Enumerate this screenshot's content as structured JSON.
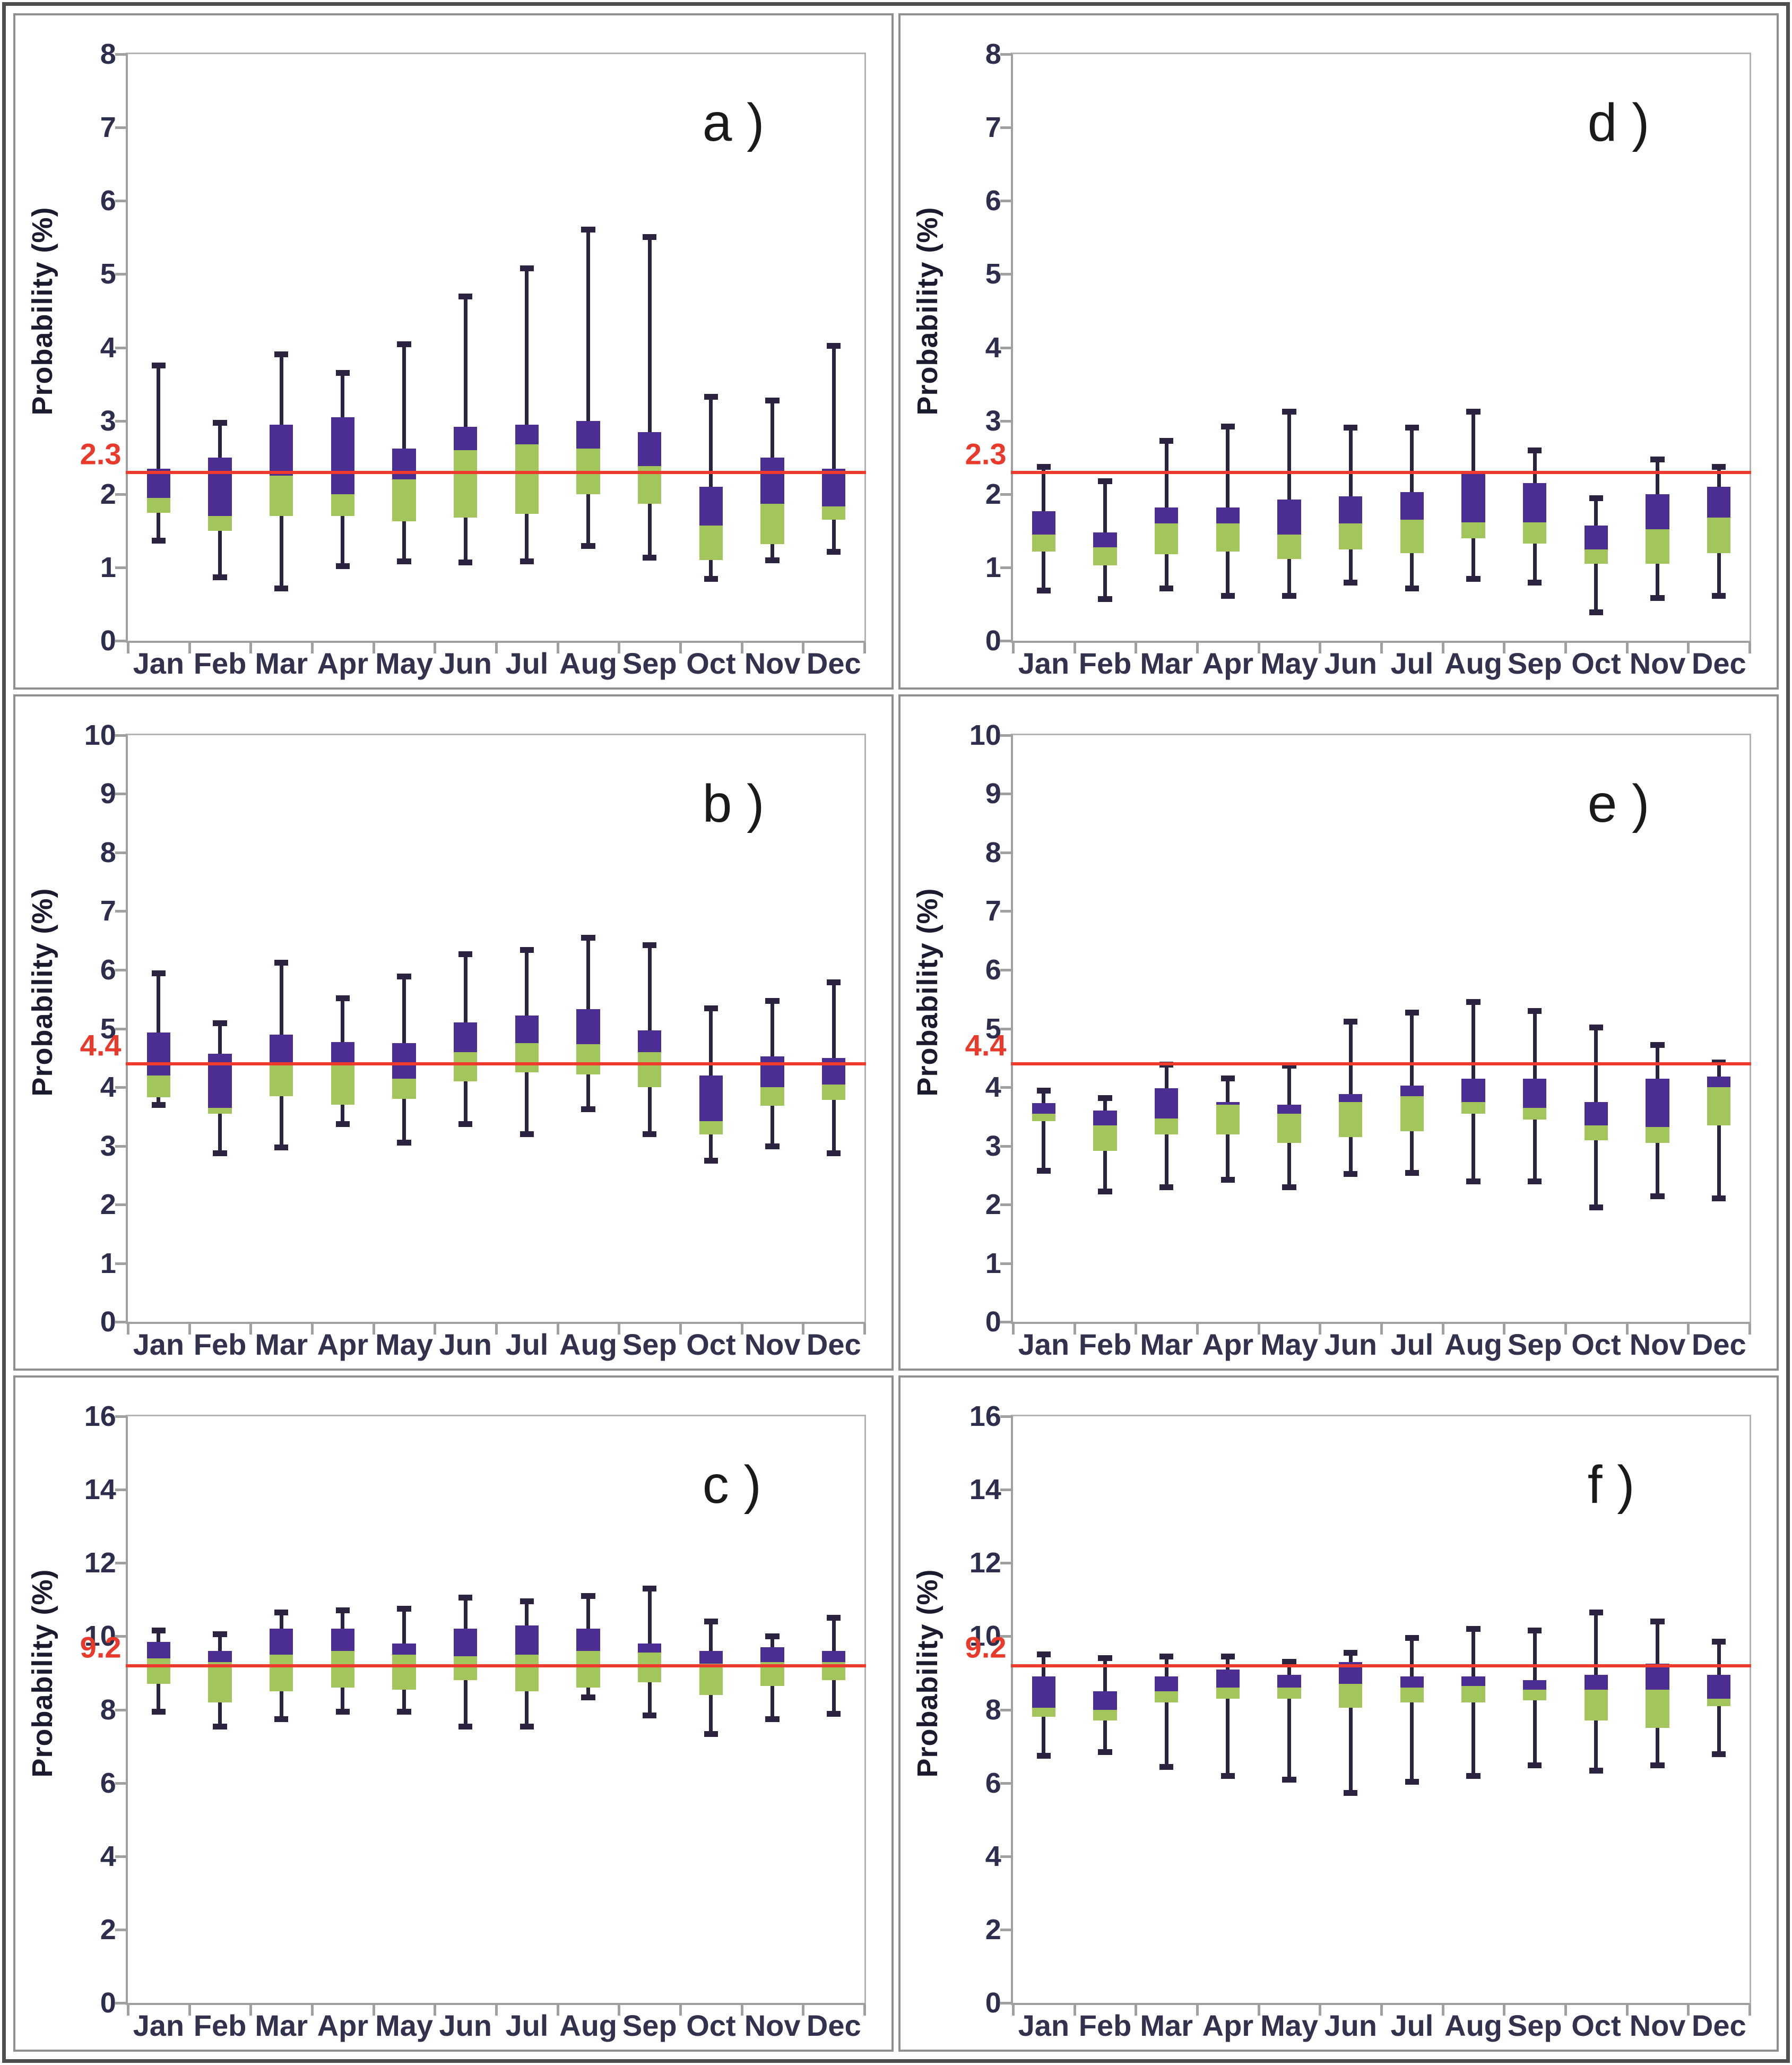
{
  "figure": {
    "description": "Six-panel monthly box-and-whisker plots of probability (%)",
    "months": [
      "Jan",
      "Feb",
      "Mar",
      "Apr",
      "May",
      "Jun",
      "Jul",
      "Aug",
      "Sep",
      "Oct",
      "Nov",
      "Dec"
    ],
    "ylabel": "Probability (%)",
    "box_columns": [
      "low",
      "q1",
      "median",
      "q3",
      "high"
    ],
    "colors": {
      "box_upper_purple": "#4c2d91",
      "box_lower_green": "#a3c65c",
      "whisker": "#2b2340",
      "ref_line_red": "#ef3b2d",
      "ref_label_red": "#e8392b",
      "axis_gray": "#a0a0a0",
      "plot_border_gray": "#b3b3b3",
      "panel_border_gray": "#8f8f8f",
      "outer_border_gray": "#4f4f4f",
      "tick_text_navy": "#2d2d4d"
    }
  },
  "chart_data": [
    {
      "panel": "a",
      "label": "a )",
      "type": "box",
      "ylabel": "Probability (%)",
      "ylim": [
        0,
        8
      ],
      "ystep": 1,
      "grid": false,
      "refline": {
        "value": 2.3,
        "label": "2.3"
      },
      "months": [
        "Jan",
        "Feb",
        "Mar",
        "Apr",
        "May",
        "Jun",
        "Jul",
        "Aug",
        "Sep",
        "Oct",
        "Nov",
        "Dec"
      ],
      "values": [
        [
          1.35,
          1.75,
          1.95,
          2.35,
          3.78
        ],
        [
          0.85,
          1.5,
          1.7,
          2.5,
          3.0
        ],
        [
          0.7,
          1.7,
          2.25,
          2.95,
          3.93
        ],
        [
          1.0,
          1.7,
          2.0,
          3.05,
          3.68
        ],
        [
          1.07,
          1.63,
          2.2,
          2.62,
          4.07
        ],
        [
          1.05,
          1.68,
          2.6,
          2.92,
          4.72
        ],
        [
          1.07,
          1.73,
          2.68,
          2.95,
          5.1
        ],
        [
          1.28,
          2.0,
          2.62,
          3.0,
          5.63
        ],
        [
          1.12,
          1.87,
          2.38,
          2.85,
          5.53
        ],
        [
          0.83,
          1.1,
          1.57,
          2.1,
          3.35
        ],
        [
          1.08,
          1.32,
          1.87,
          2.5,
          3.3
        ],
        [
          1.2,
          1.65,
          1.83,
          2.35,
          4.05
        ]
      ]
    },
    {
      "panel": "d",
      "label": "d )",
      "type": "box",
      "ylabel": "Probability (%)",
      "ylim": [
        0,
        8
      ],
      "ystep": 1,
      "grid": false,
      "refline": {
        "value": 2.3,
        "label": "2.3"
      },
      "months": [
        "Jan",
        "Feb",
        "Mar",
        "Apr",
        "May",
        "Jun",
        "Jul",
        "Aug",
        "Sep",
        "Oct",
        "Nov",
        "Dec"
      ],
      "values": [
        [
          0.67,
          1.22,
          1.45,
          1.77,
          2.4
        ],
        [
          0.55,
          1.03,
          1.28,
          1.48,
          2.2
        ],
        [
          0.7,
          1.18,
          1.6,
          1.82,
          2.75
        ],
        [
          0.6,
          1.22,
          1.6,
          1.82,
          2.95
        ],
        [
          0.6,
          1.12,
          1.45,
          1.93,
          3.15
        ],
        [
          0.78,
          1.25,
          1.6,
          1.97,
          2.93
        ],
        [
          0.7,
          1.2,
          1.65,
          2.03,
          2.93
        ],
        [
          0.83,
          1.4,
          1.62,
          2.3,
          3.15
        ],
        [
          0.78,
          1.33,
          1.62,
          2.15,
          2.62
        ],
        [
          0.37,
          1.05,
          1.25,
          1.57,
          1.97
        ],
        [
          0.57,
          1.05,
          1.52,
          2.0,
          2.5
        ],
        [
          0.6,
          1.2,
          1.68,
          2.1,
          2.4
        ]
      ]
    },
    {
      "panel": "b",
      "label": "b )",
      "type": "box",
      "ylabel": "Probability (%)",
      "ylim": [
        0,
        10
      ],
      "ystep": 1,
      "grid": false,
      "refline": {
        "value": 4.4,
        "label": "4.4"
      },
      "months": [
        "Jan",
        "Feb",
        "Mar",
        "Apr",
        "May",
        "Jun",
        "Jul",
        "Aug",
        "Sep",
        "Oct",
        "Nov",
        "Dec"
      ],
      "values": [
        [
          3.68,
          3.83,
          4.2,
          4.93,
          5.97
        ],
        [
          2.85,
          3.55,
          3.65,
          4.57,
          5.12
        ],
        [
          2.95,
          3.85,
          4.4,
          4.9,
          6.15
        ],
        [
          3.35,
          3.7,
          4.37,
          4.77,
          5.55
        ],
        [
          3.03,
          3.8,
          4.15,
          4.75,
          5.92
        ],
        [
          3.35,
          4.1,
          4.6,
          5.1,
          6.3
        ],
        [
          3.18,
          4.25,
          4.75,
          5.22,
          6.37
        ],
        [
          3.6,
          4.22,
          4.73,
          5.33,
          6.58
        ],
        [
          3.18,
          4.0,
          4.6,
          4.97,
          6.45
        ],
        [
          2.73,
          3.2,
          3.42,
          4.2,
          5.38
        ],
        [
          2.97,
          3.68,
          4.0,
          4.53,
          5.5
        ],
        [
          2.85,
          3.78,
          4.05,
          4.5,
          5.82
        ]
      ]
    },
    {
      "panel": "e",
      "label": "e )",
      "type": "box",
      "ylabel": "Probability (%)",
      "ylim": [
        0,
        10
      ],
      "ystep": 1,
      "grid": false,
      "refline": {
        "value": 4.4,
        "label": "4.4"
      },
      "months": [
        "Jan",
        "Feb",
        "Mar",
        "Apr",
        "May",
        "Jun",
        "Jul",
        "Aug",
        "Sep",
        "Oct",
        "Nov",
        "Dec"
      ],
      "values": [
        [
          2.55,
          3.42,
          3.55,
          3.73,
          3.97
        ],
        [
          2.2,
          2.92,
          3.35,
          3.6,
          3.85
        ],
        [
          2.27,
          3.2,
          3.47,
          3.98,
          4.42
        ],
        [
          2.4,
          3.2,
          3.7,
          3.75,
          4.18
        ],
        [
          2.27,
          3.05,
          3.55,
          3.7,
          4.4
        ],
        [
          2.5,
          3.15,
          3.75,
          3.88,
          5.15
        ],
        [
          2.52,
          3.25,
          3.85,
          4.03,
          5.3
        ],
        [
          2.37,
          3.55,
          3.75,
          4.15,
          5.48
        ],
        [
          2.37,
          3.45,
          3.65,
          4.15,
          5.33
        ],
        [
          1.93,
          3.1,
          3.35,
          3.75,
          5.05
        ],
        [
          2.12,
          3.05,
          3.32,
          4.15,
          4.75
        ],
        [
          2.08,
          3.35,
          4.0,
          4.18,
          4.45
        ]
      ]
    },
    {
      "panel": "c",
      "label": "c )",
      "type": "box",
      "ylabel": "Probability (%)",
      "ylim": [
        0,
        16
      ],
      "ystep": 2,
      "grid": false,
      "refline": {
        "value": 9.2,
        "label": "9.2"
      },
      "months": [
        "Jan",
        "Feb",
        "Mar",
        "Apr",
        "May",
        "Jun",
        "Jul",
        "Aug",
        "Sep",
        "Oct",
        "Nov",
        "Dec"
      ],
      "values": [
        [
          7.9,
          8.7,
          9.4,
          9.85,
          10.2
        ],
        [
          7.5,
          8.2,
          9.3,
          9.6,
          10.1
        ],
        [
          7.7,
          8.5,
          9.5,
          10.2,
          10.7
        ],
        [
          7.9,
          8.6,
          9.6,
          10.2,
          10.75
        ],
        [
          7.9,
          8.55,
          9.5,
          9.8,
          10.8
        ],
        [
          7.5,
          8.8,
          9.45,
          10.2,
          11.1
        ],
        [
          7.5,
          8.5,
          9.5,
          10.3,
          11.0
        ],
        [
          8.3,
          8.6,
          9.6,
          10.2,
          11.15
        ],
        [
          7.8,
          8.75,
          9.55,
          9.8,
          11.35
        ],
        [
          7.3,
          8.4,
          9.25,
          9.6,
          10.45
        ],
        [
          7.7,
          8.65,
          9.3,
          9.7,
          10.05
        ],
        [
          7.85,
          8.8,
          9.3,
          9.6,
          10.55
        ]
      ]
    },
    {
      "panel": "f",
      "label": "f )",
      "type": "box",
      "ylabel": "Probability (%)",
      "ylim": [
        0,
        16
      ],
      "ystep": 2,
      "grid": false,
      "refline": {
        "value": 9.2,
        "label": "9.2"
      },
      "months": [
        "Jan",
        "Feb",
        "Mar",
        "Apr",
        "May",
        "Jun",
        "Jul",
        "Aug",
        "Sep",
        "Oct",
        "Nov",
        "Dec"
      ],
      "values": [
        [
          6.7,
          7.8,
          8.05,
          8.9,
          9.55
        ],
        [
          6.8,
          7.7,
          8.0,
          8.5,
          9.45
        ],
        [
          6.4,
          8.2,
          8.5,
          8.9,
          9.5
        ],
        [
          6.15,
          8.3,
          8.6,
          9.1,
          9.5
        ],
        [
          6.05,
          8.3,
          8.6,
          8.95,
          9.35
        ],
        [
          5.7,
          8.05,
          8.7,
          9.3,
          9.6
        ],
        [
          6.0,
          8.2,
          8.6,
          8.9,
          10.0
        ],
        [
          6.15,
          8.2,
          8.65,
          8.9,
          10.25
        ],
        [
          6.45,
          8.25,
          8.55,
          8.8,
          10.2
        ],
        [
          6.3,
          7.7,
          8.55,
          8.95,
          10.7
        ],
        [
          6.45,
          7.5,
          8.55,
          9.25,
          10.45
        ],
        [
          6.75,
          8.1,
          8.3,
          8.95,
          9.9
        ]
      ]
    }
  ]
}
